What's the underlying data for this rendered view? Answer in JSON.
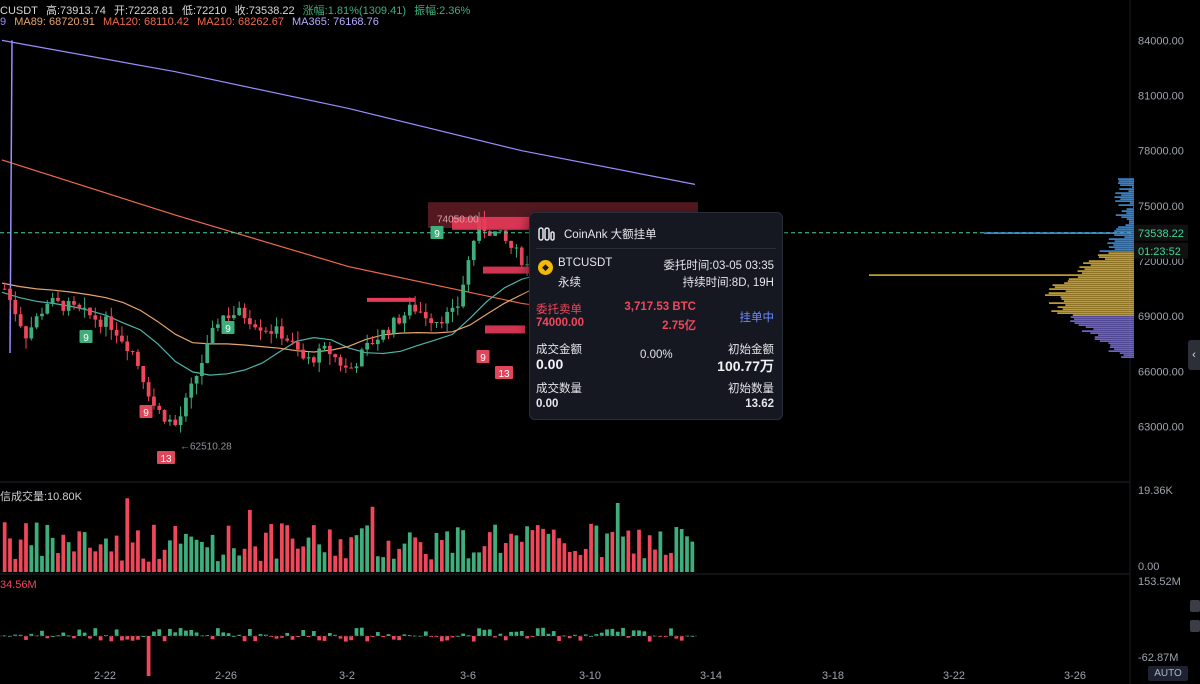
{
  "header": {
    "symbol": "CUSDT",
    "high": "高:73913.74",
    "open": "开:72228.81",
    "low": "低:72210",
    "close": "收:73538.22",
    "change": "涨幅:1.81%(1309.41)",
    "amplitude": "振幅:2.36%"
  },
  "ma_row": {
    "lead": "9",
    "ma89": "MA89: 68720.91",
    "ma120": "MA120: 68110.42",
    "ma210": "MA210: 68262.67",
    "ma365": "MA365: 76168.76"
  },
  "colors": {
    "up": "#3fae7d",
    "down": "#f0475b",
    "ma89": "#4fb3a9",
    "ma120": "#e8a46a",
    "ma210": "#f06a4c",
    "ma365": "#9b8cff",
    "current_price": "#44d49a",
    "tooltip_bg": "#151821",
    "accent_blue": "#6b8cff"
  },
  "volume_label": "信成交量:10.80K",
  "indicator_label": "34.56M",
  "chart_data": {
    "type": "candlestick",
    "x_ticks": [
      "2-22",
      "2-26",
      "3-2",
      "3-6",
      "3-10",
      "3-14",
      "3-18",
      "3-22",
      "3-26"
    ],
    "price_axis_ticks": [
      "84000.00",
      "81000.00",
      "78000.00",
      "75000.00",
      "72000.00",
      "69000.00",
      "66000.00",
      "63000.00"
    ],
    "price_ylim": [
      61400,
      85000
    ],
    "current_price": "73538.22",
    "countdown": "01:23:52",
    "low_marker": "62510.28",
    "order_line_label": "74050.00",
    "volume_axis_ticks": [
      "19.36K",
      "0.00"
    ],
    "indicator_axis_ticks": [
      "153.52M",
      "-62.87M"
    ],
    "td_labels": [
      {
        "text": "9",
        "kind": "up"
      },
      {
        "text": "9",
        "kind": "up"
      },
      {
        "text": "9",
        "kind": "up"
      },
      {
        "text": "9",
        "kind": "down"
      },
      {
        "text": "13",
        "kind": "down"
      },
      {
        "text": "9",
        "kind": "down"
      },
      {
        "text": "13",
        "kind": "down"
      }
    ],
    "ma365_values": [
      84000,
      82300,
      80300,
      78000,
      76168.76
    ],
    "ma210_values": [
      77500,
      74500,
      71700,
      69700,
      68262.67
    ],
    "price_path": [
      70500,
      68000,
      69800,
      69500,
      69000,
      68500,
      67000,
      64000,
      63000,
      66000,
      69000,
      69200,
      68400,
      68000,
      66500,
      67200,
      66000,
      67500,
      68500,
      69500,
      68800,
      69200,
      74000,
      73400,
      72200,
      70800,
      69500,
      68600,
      68200,
      67600,
      68000,
      67400,
      73538.22
    ]
  },
  "tooltip": {
    "title": "CoinAnk 大额挂单",
    "coin_symbol": "BTCUSDT",
    "contract": "永续",
    "order_time": "委托时间:03-05 03:35",
    "duration": "持续时间:8D, 19H",
    "side_label": "委托卖单",
    "price": "74000.00",
    "qty": "3,717.53 BTC",
    "value": "2.75亿",
    "status": "挂单中",
    "filled_amount_label": "成交金额",
    "filled_amount": "0.00",
    "pct": "0.00%",
    "initial_amount_label": "初始金额",
    "initial_amount": "100.77万",
    "filled_qty_label": "成交数量",
    "filled_qty": "0.00",
    "initial_qty_label": "初始数量",
    "initial_qty": "13.62"
  },
  "auto_label": "AUTO"
}
